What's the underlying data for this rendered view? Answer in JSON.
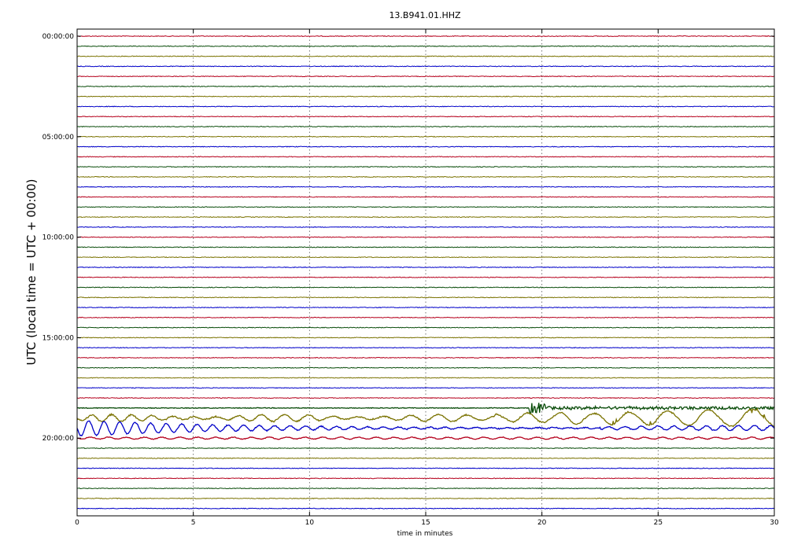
{
  "chart_data": {
    "type": "line",
    "title": "13.B941.01.HHZ",
    "xlabel": "time in minutes",
    "ylabel": "UTC (local time = UTC + 00:00)",
    "xlim": [
      0,
      30
    ],
    "x_ticks": [
      0,
      5,
      10,
      15,
      20,
      25,
      30
    ],
    "x_tick_labels": [
      "0",
      "5",
      "10",
      "15",
      "20",
      "25",
      "30"
    ],
    "y_tick_labels": [
      "00:00:00",
      "05:00:00",
      "10:00:00",
      "15:00:00",
      "20:00:00"
    ],
    "y_tick_rows": [
      0,
      10,
      20,
      30,
      40
    ],
    "row_count": 48,
    "row_interval_minutes": 30,
    "grid": "x-dotted",
    "color_cycle": [
      "#b5001c",
      "#0b4d0b",
      "#7a7200",
      "#0000c8"
    ],
    "rows_description": "Each row is one 30-minute helicorder trace; colors cycle red, green, olive, blue",
    "events": [
      {
        "row": 37,
        "start_min": 19.4,
        "end_min": 30,
        "amplitude": "high",
        "style": "burst"
      },
      {
        "row": 38,
        "start_min": 0,
        "end_min": 30,
        "amplitude": "high",
        "style": "surface-waves"
      },
      {
        "row": 39,
        "start_min": 0,
        "end_min": 30,
        "amplitude": "high",
        "style": "surface-waves-decaying"
      },
      {
        "row": 40,
        "start_min": 0,
        "end_min": 30,
        "amplitude": "low",
        "style": "wobble"
      }
    ]
  }
}
